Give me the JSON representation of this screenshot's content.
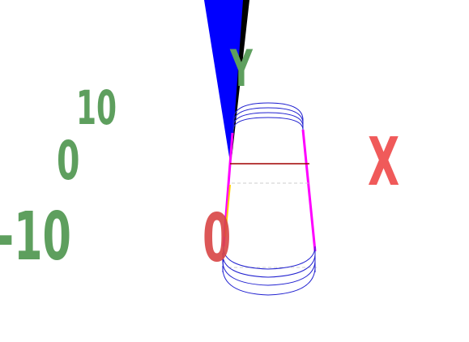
{
  "labels": {
    "y_axis": "Y",
    "x_axis": "X",
    "y_ticks": [
      "10",
      "0",
      "-10"
    ],
    "x_tick": "0"
  },
  "colors": {
    "y_label": "#5e9f5e",
    "x_label": "#f05a5a",
    "x_tick": "#d94545",
    "cone": "#0000ff",
    "wire": "#2020d0",
    "edge": "#ff00ff",
    "axis_x": "#a00000",
    "axis_yellow": "#ffcc00"
  }
}
